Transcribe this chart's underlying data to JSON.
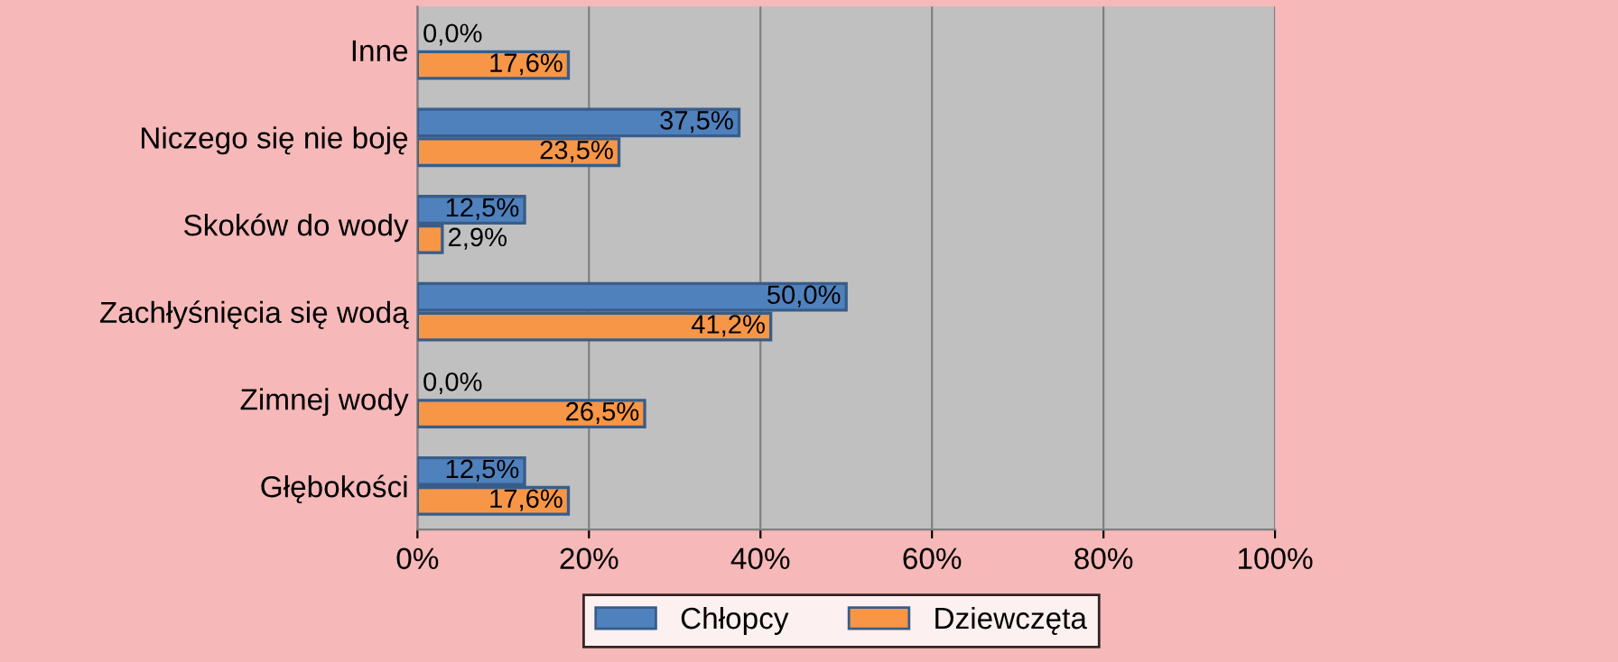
{
  "chart_data": {
    "type": "bar",
    "orientation": "horizontal",
    "categories": [
      "Inne",
      "Niczego się nie boję",
      "Skoków do wody",
      "Zachłyśnięcia się wodą",
      "Zimnej wody",
      "Głębokości"
    ],
    "series": [
      {
        "name": "Chłopcy",
        "color": "#4f81bd",
        "values": [
          0.0,
          37.5,
          12.5,
          50.0,
          0.0,
          12.5
        ],
        "value_labels": [
          "0,0%",
          "37,5%",
          "12,5%",
          "50,0%",
          "0,0%",
          "12,5%"
        ]
      },
      {
        "name": "Dziewczęta",
        "color": "#f79646",
        "values": [
          17.6,
          23.5,
          2.9,
          41.2,
          26.5,
          17.6
        ],
        "value_labels": [
          "17,6%",
          "23,5%",
          "2,9%",
          "41,2%",
          "26,5%",
          "17,6%"
        ]
      }
    ],
    "xlim": [
      0,
      100
    ],
    "xticks": [
      {
        "value": 0,
        "label": "0%"
      },
      {
        "value": 20,
        "label": "20%"
      },
      {
        "value": 40,
        "label": "40%"
      },
      {
        "value": 60,
        "label": "60%"
      },
      {
        "value": 80,
        "label": "80%"
      },
      {
        "value": 100,
        "label": "100%"
      }
    ],
    "grid": "x",
    "legend": "bottom"
  }
}
